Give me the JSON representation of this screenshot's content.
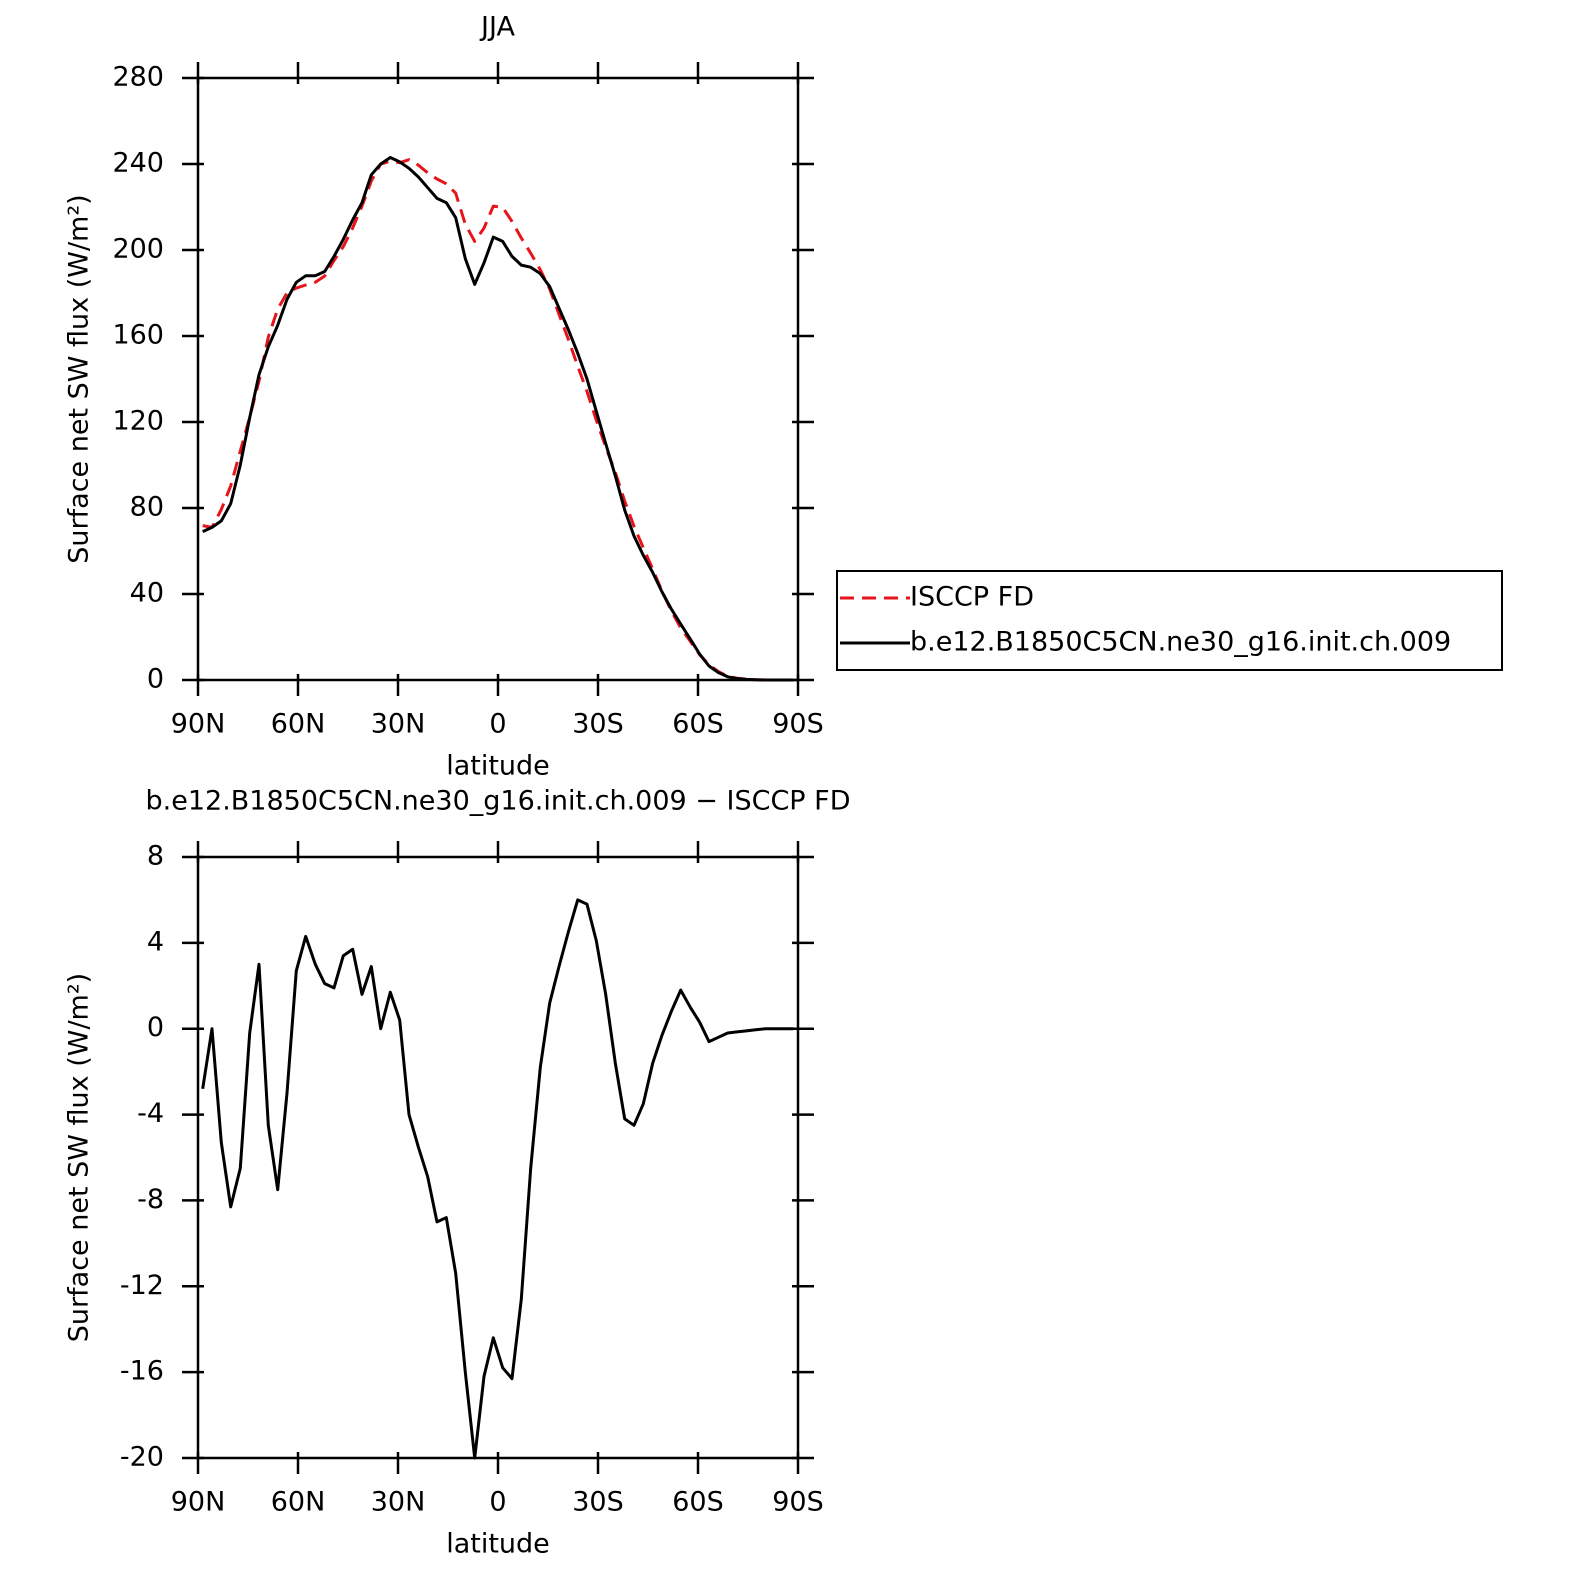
{
  "chart_data": [
    {
      "type": "line",
      "title": "JJA",
      "xlabel": "latitude",
      "ylabel": "Surface net SW flux (W/m²)",
      "xlim": [
        90,
        -90
      ],
      "xticks": [
        {
          "value": 90,
          "label": "90N"
        },
        {
          "value": 60,
          "label": "60N"
        },
        {
          "value": 30,
          "label": "30N"
        },
        0,
        {
          "value": -30,
          "label": "30S"
        },
        {
          "value": -60,
          "label": "60S"
        },
        {
          "value": -90,
          "label": "90S"
        }
      ],
      "ylim": [
        0,
        280
      ],
      "yticks": [
        0,
        40,
        80,
        120,
        160,
        200,
        240,
        280
      ],
      "x": [
        88.6,
        85.8,
        83.0,
        80.2,
        77.3,
        74.5,
        71.7,
        68.9,
        66.1,
        63.3,
        60.5,
        57.7,
        54.8,
        52.0,
        49.2,
        46.4,
        43.6,
        40.8,
        38.0,
        35.2,
        32.3,
        29.5,
        26.7,
        23.9,
        21.1,
        18.3,
        15.5,
        12.7,
        9.8,
        7.0,
        4.2,
        1.4,
        -1.4,
        -4.2,
        -7.0,
        -9.8,
        -12.7,
        -15.5,
        -18.3,
        -21.1,
        -23.9,
        -26.7,
        -29.5,
        -32.3,
        -35.2,
        -38.0,
        -40.8,
        -43.6,
        -46.4,
        -49.2,
        -52.0,
        -54.8,
        -57.7,
        -60.5,
        -63.3,
        -66.1,
        -68.9,
        -71.7,
        -74.5,
        -77.3,
        -80.2,
        -83.0,
        -85.8,
        -88.6
      ],
      "series": [
        {
          "name": "ISCCP FD",
          "color": "#e8141b",
          "dash": "dashed",
          "values": [
            71.8,
            71,
            79.3,
            90.3,
            106.5,
            122.2,
            139,
            159.5,
            172.5,
            180,
            182.3,
            183.7,
            185,
            187.9,
            195.1,
            201.6,
            210.3,
            220.4,
            232.1,
            240,
            241.3,
            240.6,
            242,
            239.5,
            235.9,
            233,
            230.8,
            226.4,
            212,
            204,
            210.2,
            220.4,
            219.8,
            213.3,
            205.6,
            198.5,
            190.8,
            181.8,
            170.1,
            158.5,
            146,
            134.2,
            120.9,
            108.4,
            96.6,
            83.2,
            71.5,
            61.5,
            51.6,
            41.3,
            32.2,
            24.2,
            18,
            11.7,
            7.1,
            3.9,
            1.7,
            0.85,
            0.4,
            0.15,
            0,
            0,
            0,
            0
          ]
        },
        {
          "name": "b.e12.B1850C5CN.ne30_g16.init.ch.009",
          "color": "#000000",
          "dash": "solid",
          "values": [
            69,
            71,
            74,
            82,
            100,
            122,
            142,
            155,
            165,
            177,
            185,
            188,
            188,
            190,
            197,
            205,
            214,
            222,
            235,
            240,
            243,
            241,
            238,
            234,
            229,
            224,
            222,
            215,
            196,
            184,
            194,
            206,
            204,
            197,
            193,
            192,
            189,
            183,
            173,
            163,
            152,
            140,
            125,
            110,
            95,
            79,
            67,
            58,
            50,
            41,
            33,
            26,
            19,
            12,
            6.5,
            3.5,
            1.5,
            0.7,
            0.3,
            0.1,
            0,
            0,
            0,
            0
          ]
        }
      ]
    },
    {
      "type": "line",
      "title": "b.e12.B1850C5CN.ne30_g16.init.ch.009 − ISCCP FD",
      "xlabel": "latitude",
      "ylabel": "Surface net SW flux (W/m²)",
      "xlim": [
        90,
        -90
      ],
      "xticks": [
        {
          "value": 90,
          "label": "90N"
        },
        {
          "value": 60,
          "label": "60N"
        },
        {
          "value": 30,
          "label": "30N"
        },
        0,
        {
          "value": -30,
          "label": "30S"
        },
        {
          "value": -60,
          "label": "60S"
        },
        {
          "value": -90,
          "label": "90S"
        }
      ],
      "ylim": [
        -20,
        8
      ],
      "yticks": [
        -20,
        -16,
        -12,
        -8,
        -4,
        0,
        4,
        8
      ],
      "x": [
        88.6,
        85.8,
        83.0,
        80.2,
        77.3,
        74.5,
        71.7,
        68.9,
        66.1,
        63.3,
        60.5,
        57.7,
        54.8,
        52.0,
        49.2,
        46.4,
        43.6,
        40.8,
        38.0,
        35.2,
        32.3,
        29.5,
        26.7,
        23.9,
        21.1,
        18.3,
        15.5,
        12.7,
        9.8,
        7.0,
        4.2,
        1.4,
        -1.4,
        -4.2,
        -7.0,
        -9.8,
        -12.7,
        -15.5,
        -18.3,
        -21.1,
        -23.9,
        -26.7,
        -29.5,
        -32.3,
        -35.2,
        -38.0,
        -40.8,
        -43.6,
        -46.4,
        -49.2,
        -52.0,
        -54.8,
        -57.7,
        -60.5,
        -63.3,
        -66.1,
        -68.9,
        -71.7,
        -74.5,
        -77.3,
        -80.2,
        -83.0,
        -85.8,
        -88.6
      ],
      "series": [
        {
          "color": "#000000",
          "dash": "solid",
          "values": [
            -2.8,
            0,
            -5.3,
            -8.3,
            -6.5,
            -0.2,
            3.0,
            -4.5,
            -7.5,
            -3,
            2.7,
            4.3,
            3.0,
            2.1,
            1.9,
            3.4,
            3.7,
            1.6,
            2.9,
            0,
            1.7,
            0.4,
            -4.0,
            -5.5,
            -6.9,
            -9.0,
            -8.8,
            -11.4,
            -16.0,
            -20.0,
            -16.2,
            -14.4,
            -15.8,
            -16.3,
            -12.6,
            -6.5,
            -1.8,
            1.2,
            2.9,
            4.5,
            6.0,
            5.8,
            4.1,
            1.6,
            -1.6,
            -4.2,
            -4.5,
            -3.5,
            -1.6,
            -0.3,
            0.8,
            1.8,
            1.0,
            0.3,
            -0.6,
            -0.4,
            -0.2,
            -0.15,
            -0.1,
            -0.05,
            0,
            0,
            0,
            0
          ]
        }
      ]
    }
  ]
}
